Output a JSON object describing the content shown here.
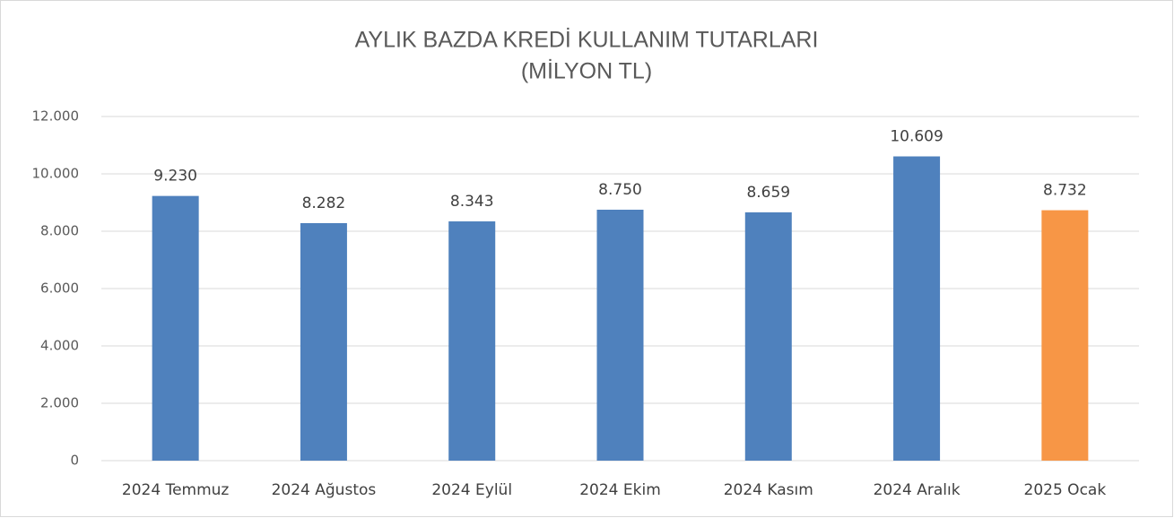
{
  "chart_data": {
    "type": "bar",
    "title": "AYLIK BAZDA KREDİ KULLANIM TUTARLARI",
    "subtitle": "(MİLYON TL)",
    "categories": [
      "2024 Temmuz",
      "2024 Ağustos",
      "2024 Eylül",
      "2024 Ekim",
      "2024 Kasım",
      "2024 Aralık",
      "2025 Ocak"
    ],
    "values": [
      9230,
      8282,
      8343,
      8750,
      8659,
      10609,
      8732
    ],
    "value_labels": [
      "9.230",
      "8.282",
      "8.343",
      "8.750",
      "8.659",
      "10.609",
      "8.732"
    ],
    "colors": [
      "#4f81bd",
      "#4f81bd",
      "#4f81bd",
      "#4f81bd",
      "#4f81bd",
      "#4f81bd",
      "#f79646"
    ],
    "ylim": [
      0,
      12000
    ],
    "yticks": [
      0,
      {
        "value": 2000,
        "label": "2.000"
      },
      {
        "value": 4000,
        "label": "4.000"
      },
      {
        "value": 6000,
        "label": "6.000"
      },
      {
        "value": 8000,
        "label": "8.000"
      },
      {
        "value": 10000,
        "label": "10.000"
      },
      {
        "value": 12000,
        "label": "12.000"
      }
    ],
    "grid": true
  }
}
